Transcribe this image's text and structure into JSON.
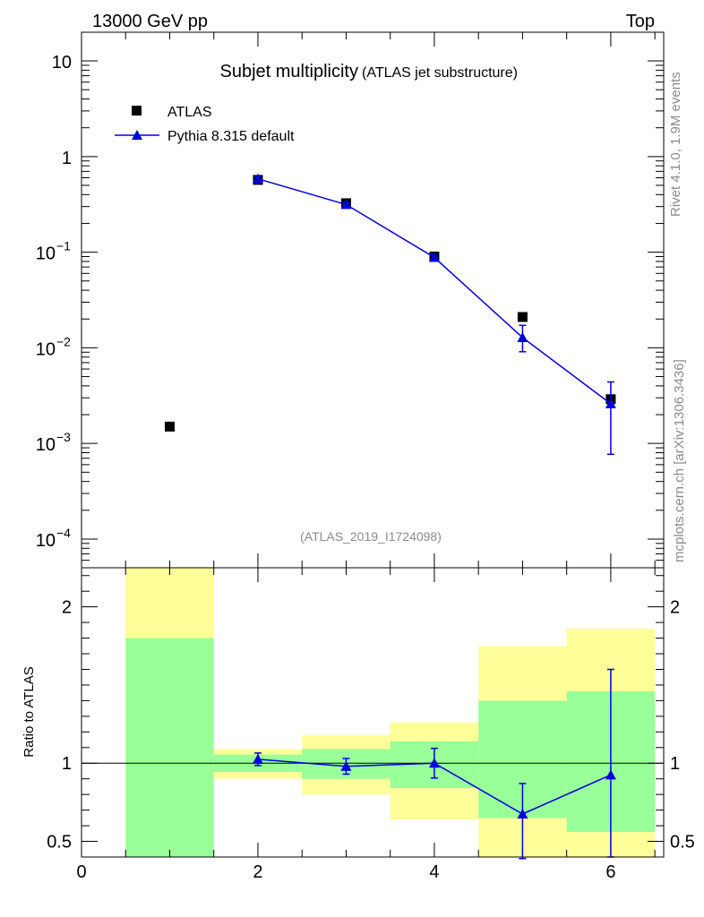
{
  "header": {
    "left": "13000 GeV pp",
    "right": "Top"
  },
  "side": {
    "rivet": "Rivet 4.1.0,  1.9M events",
    "mcplots": "mcplots.cern.ch [arXiv:1306.3436]"
  },
  "colors": {
    "data": "#000000",
    "mc": "#0000dd",
    "band_inner": "#99ff99",
    "band_outer": "#ffff99"
  },
  "chart_data": [
    {
      "type": "scatter",
      "title": "Subjet multiplicity",
      "subtitle": "(ATLAS jet substructure)",
      "watermark": "(ATLAS_2019_I1724098)",
      "xlim": [
        0,
        6.6
      ],
      "ylim_log10": [
        -4.3,
        1.3
      ],
      "yscale": "log",
      "yticks": [
        {
          "exp": 1,
          "label": "10"
        },
        {
          "exp": 0,
          "label": "1"
        },
        {
          "exp": -1,
          "base": "10",
          "sup": "−1"
        },
        {
          "exp": -2,
          "base": "10",
          "sup": "−2"
        },
        {
          "exp": -3,
          "base": "10",
          "sup": "−3"
        },
        {
          "exp": -4,
          "base": "10",
          "sup": "−4"
        }
      ],
      "legend": [
        {
          "label": "ATLAS",
          "marker": "square"
        },
        {
          "label": "Pythia 8.315 default",
          "marker": "triangle-line"
        }
      ],
      "series": [
        {
          "name": "ATLAS",
          "x": [
            1,
            2,
            3,
            4,
            5,
            6
          ],
          "y": [
            0.0015,
            0.57,
            0.325,
            0.09,
            0.021,
            0.0029
          ]
        },
        {
          "name": "Pythia 8.315 default",
          "x": [
            2,
            3,
            4,
            5,
            6
          ],
          "y": [
            0.585,
            0.315,
            0.088,
            0.0128,
            0.0026
          ],
          "err_lo": [
            0.555,
            0.3,
            0.081,
            0.0091,
            0.00077
          ],
          "err_hi": [
            0.615,
            0.33,
            0.096,
            0.0172,
            0.0044
          ]
        }
      ]
    },
    {
      "type": "line",
      "ylabel": "Ratio to ATLAS",
      "xlim": [
        0,
        6.6
      ],
      "ylim": [
        0.4,
        2.25
      ],
      "xticks": [
        0,
        2,
        4,
        6
      ],
      "xtick_labels": [
        "0",
        "2",
        "4",
        "6"
      ],
      "yticks": [
        0.5,
        1,
        2
      ],
      "ytick_labels": [
        "0.5",
        "1",
        "2"
      ],
      "bands": [
        {
          "x0": 0.5,
          "x1": 1.5,
          "inner": [
            0.4,
            1.8
          ],
          "outer": [
            0.4,
            2.25
          ]
        },
        {
          "x0": 1.5,
          "x1": 2.5,
          "inner": [
            0.945,
            1.055
          ],
          "outer": [
            0.9,
            1.09
          ]
        },
        {
          "x0": 2.5,
          "x1": 3.5,
          "inner": [
            0.9,
            1.09
          ],
          "outer": [
            0.8,
            1.18
          ]
        },
        {
          "x0": 3.5,
          "x1": 4.5,
          "inner": [
            0.84,
            1.14
          ],
          "outer": [
            0.64,
            1.26
          ]
        },
        {
          "x0": 4.5,
          "x1": 5.5,
          "inner": [
            0.65,
            1.4
          ],
          "outer": [
            0.4,
            1.75
          ]
        },
        {
          "x0": 5.5,
          "x1": 6.5,
          "inner": [
            0.56,
            1.46
          ],
          "outer": [
            0.4,
            1.86
          ]
        }
      ],
      "series": [
        {
          "name": "Pythia 8.315 default",
          "x": [
            2,
            3,
            4,
            5,
            6
          ],
          "y": [
            1.025,
            0.98,
            1.0,
            0.675,
            0.925
          ],
          "err_lo": [
            0.985,
            0.93,
            0.905,
            0.39,
            0.4
          ],
          "err_hi": [
            1.065,
            1.03,
            1.095,
            0.87,
            1.6
          ]
        }
      ]
    }
  ]
}
